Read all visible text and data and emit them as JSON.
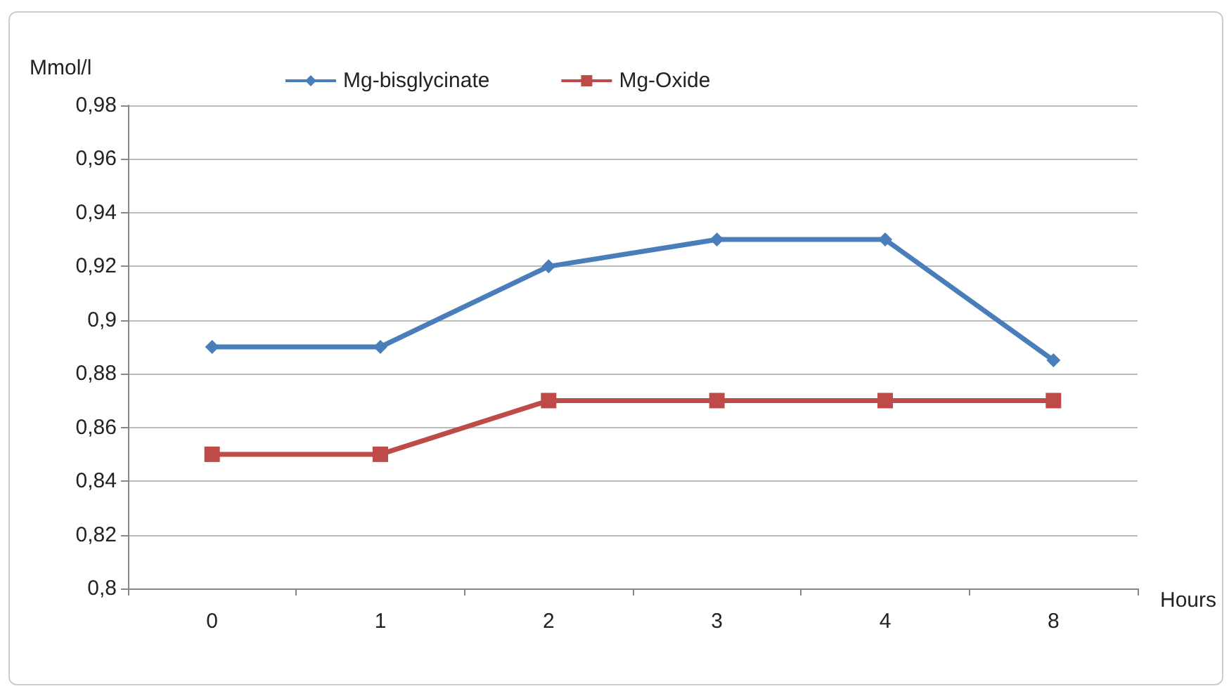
{
  "chart_data": {
    "type": "line",
    "ylabel": "Mmol/l",
    "xlabel": "Hours",
    "categories": [
      "0",
      "1",
      "2",
      "3",
      "4",
      "8"
    ],
    "series": [
      {
        "name": "Mg-bisglycinate",
        "color": "#4a7ebb",
        "marker": "diamond",
        "values": [
          0.89,
          0.89,
          0.92,
          0.93,
          0.93,
          0.885
        ]
      },
      {
        "name": "Mg-Oxide",
        "color": "#be4b48",
        "marker": "square",
        "values": [
          0.85,
          0.85,
          0.87,
          0.87,
          0.87,
          0.87
        ]
      }
    ],
    "ylim": [
      0.8,
      0.98
    ],
    "yticks": [
      {
        "value": 0.8,
        "label": "0,8"
      },
      {
        "value": 0.82,
        "label": "0,82"
      },
      {
        "value": 0.84,
        "label": "0,84"
      },
      {
        "value": 0.86,
        "label": "0,86"
      },
      {
        "value": 0.88,
        "label": "0,88"
      },
      {
        "value": 0.9,
        "label": "0,9"
      },
      {
        "value": 0.92,
        "label": "0,92"
      },
      {
        "value": 0.94,
        "label": "0,94"
      },
      {
        "value": 0.96,
        "label": "0,96"
      },
      {
        "value": 0.98,
        "label": "0,98"
      }
    ],
    "grid": "y",
    "legend": "top",
    "line_style": "solid"
  }
}
